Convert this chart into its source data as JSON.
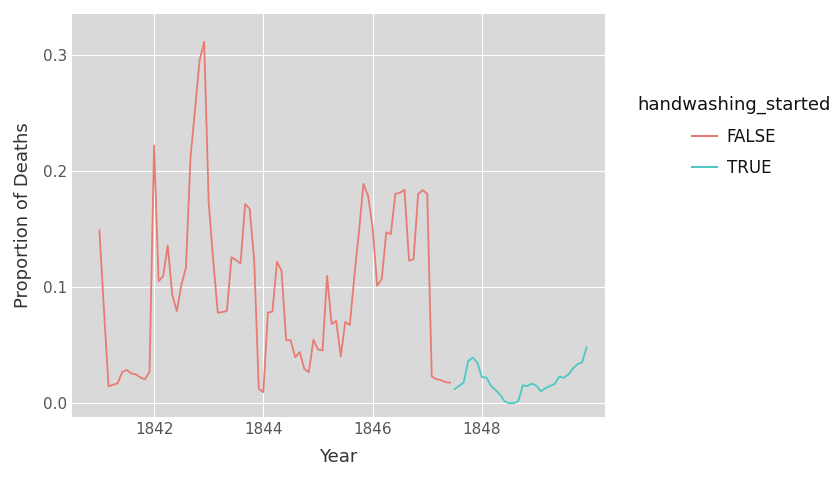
{
  "title": "",
  "xlabel": "Year",
  "ylabel": "Proportion of Deaths",
  "legend_title": "handwashing_started",
  "false_color": "#E87B72",
  "true_color": "#4DC8C4",
  "axes_bg_color": "#D9D9D9",
  "fig_bg_color": "#FFFFFF",
  "grid_color": "#FFFFFF",
  "ylim": [
    -0.012,
    0.335
  ],
  "xlim": [
    1840.5,
    1850.25
  ],
  "xticks": [
    1842,
    1844,
    1846,
    1848
  ],
  "yticks": [
    0.0,
    0.1,
    0.2,
    0.3
  ],
  "false_x": [
    1841.0,
    1841.083,
    1841.167,
    1841.25,
    1841.333,
    1841.417,
    1841.5,
    1841.583,
    1841.667,
    1841.75,
    1841.833,
    1841.917,
    1842.0,
    1842.083,
    1842.167,
    1842.25,
    1842.333,
    1842.417,
    1842.5,
    1842.583,
    1842.667,
    1842.75,
    1842.833,
    1842.917,
    1843.0,
    1843.083,
    1843.167,
    1843.25,
    1843.333,
    1843.417,
    1843.5,
    1843.583,
    1843.667,
    1843.75,
    1843.833,
    1843.917,
    1844.0,
    1844.083,
    1844.167,
    1844.25,
    1844.333,
    1844.417,
    1844.5,
    1844.583,
    1844.667,
    1844.75,
    1844.833,
    1844.917,
    1845.0,
    1845.083,
    1845.167,
    1845.25,
    1845.333,
    1845.417,
    1845.5,
    1845.583,
    1845.667,
    1845.75,
    1845.833,
    1845.917,
    1846.0,
    1846.083,
    1846.167,
    1846.25,
    1846.333,
    1846.417,
    1846.5,
    1846.583,
    1846.667,
    1846.75,
    1846.833,
    1846.917,
    1847.0,
    1847.083,
    1847.167,
    1847.25,
    1847.333,
    1847.417
  ],
  "false_y": [
    0.1487,
    0.0802,
    0.0145,
    0.0159,
    0.0172,
    0.0268,
    0.0286,
    0.0256,
    0.0249,
    0.0221,
    0.0206,
    0.027,
    0.2218,
    0.1048,
    0.1095,
    0.1357,
    0.0933,
    0.0792,
    0.1019,
    0.1166,
    0.2113,
    0.2526,
    0.2949,
    0.311,
    0.1727,
    0.1225,
    0.0778,
    0.0785,
    0.0793,
    0.1256,
    0.1232,
    0.1202,
    0.1714,
    0.1672,
    0.1229,
    0.0124,
    0.0095,
    0.0779,
    0.0789,
    0.1218,
    0.1137,
    0.0543,
    0.0542,
    0.0396,
    0.044,
    0.0296,
    0.0266,
    0.0547,
    0.0463,
    0.0453,
    0.1095,
    0.068,
    0.0709,
    0.0403,
    0.0699,
    0.0672,
    0.1097,
    0.1477,
    0.1888,
    0.1784,
    0.1513,
    0.101,
    0.1069,
    0.147,
    0.1455,
    0.1802,
    0.181,
    0.1836,
    0.1227,
    0.1239,
    0.18,
    0.1833,
    0.1802,
    0.023,
    0.0206,
    0.0199,
    0.0181,
    0.0177
  ],
  "true_x": [
    1847.5,
    1847.583,
    1847.667,
    1847.75,
    1847.833,
    1847.917,
    1848.0,
    1848.083,
    1848.167,
    1848.25,
    1848.333,
    1848.417,
    1848.5,
    1848.583,
    1848.667,
    1848.75,
    1848.833,
    1848.917,
    1849.0,
    1849.083,
    1849.167,
    1849.25,
    1849.333,
    1849.417,
    1849.5,
    1849.583,
    1849.667,
    1849.75,
    1849.833,
    1849.917
  ],
  "true_y": [
    0.0122,
    0.0148,
    0.0179,
    0.0363,
    0.0393,
    0.0349,
    0.0224,
    0.0221,
    0.0148,
    0.0115,
    0.0073,
    0.0015,
    0.0,
    0.0,
    0.0017,
    0.0154,
    0.0147,
    0.0169,
    0.015,
    0.0101,
    0.0131,
    0.0149,
    0.0165,
    0.0229,
    0.0219,
    0.0246,
    0.0298,
    0.0336,
    0.035,
    0.048
  ]
}
